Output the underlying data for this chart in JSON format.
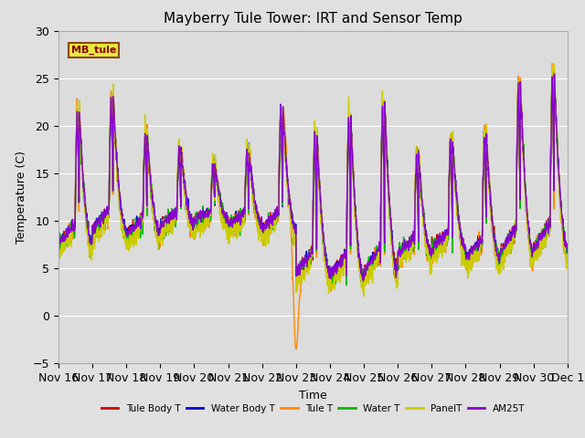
{
  "title": "Mayberry Tule Tower: IRT and Sensor Temp",
  "xlabel": "Time",
  "ylabel": "Temperature (C)",
  "ylim": [
    -5,
    30
  ],
  "yticks": [
    -5,
    0,
    5,
    10,
    15,
    20,
    25,
    30
  ],
  "fig_bg": "#e0e0e0",
  "plot_bg": "#dcdcdc",
  "grid_color": "#ffffff",
  "legend_label": "MB_tule",
  "series": [
    {
      "name": "Tule Body T",
      "color": "#cc0000",
      "lw": 1.0
    },
    {
      "name": "Water Body T",
      "color": "#0000cc",
      "lw": 1.0
    },
    {
      "name": "Tule T",
      "color": "#ff8800",
      "lw": 1.0
    },
    {
      "name": "Water T",
      "color": "#00bb00",
      "lw": 1.0
    },
    {
      "name": "PanelT",
      "color": "#cccc00",
      "lw": 1.0
    },
    {
      "name": "AM25T",
      "color": "#8800cc",
      "lw": 1.0
    }
  ],
  "xtick_labels": [
    "Nov 16",
    "Nov 17",
    "Nov 18",
    "Nov 19",
    "Nov 20",
    "Nov 21",
    "Nov 22",
    "Nov 23",
    "Nov 24",
    "Nov 25",
    "Nov 26",
    "Nov 27",
    "Nov 28",
    "Nov 29",
    "Nov 30",
    "Dec 1"
  ]
}
